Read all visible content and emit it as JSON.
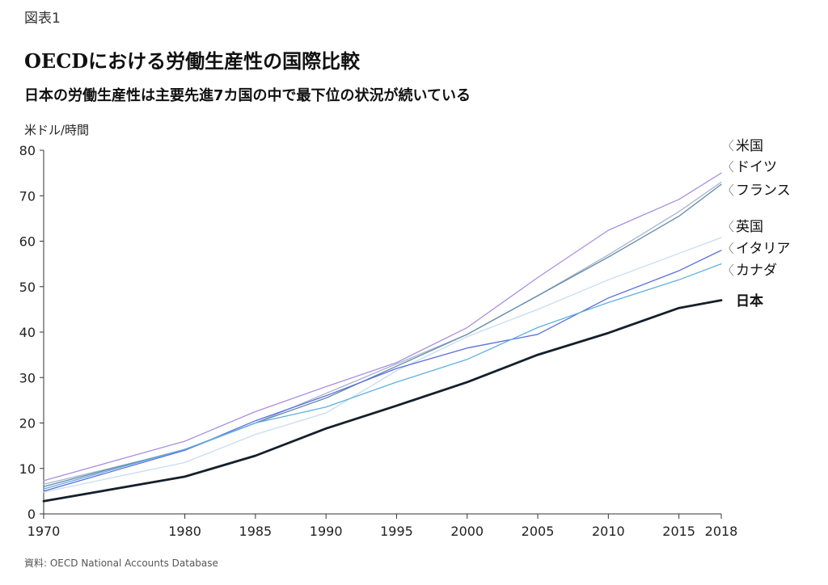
{
  "figure_label": "図表1",
  "title": "OECDにおける労働生産性の国際比較",
  "subtitle": "日本の労働生産性は主要先進7カ国の中で最下位の状況が続いている",
  "source": "資料: OECD National Accounts Database",
  "chart_data": {
    "type": "line",
    "ylabel": "米ドル/時間",
    "xlabel": "",
    "ylim": [
      0,
      80
    ],
    "y_ticks": [
      0,
      10,
      20,
      30,
      40,
      50,
      60,
      70,
      80
    ],
    "x": [
      1970,
      1980,
      1985,
      1990,
      1995,
      2000,
      2005,
      2010,
      2015,
      2018
    ],
    "x_tick_labels": [
      "1970",
      "1980",
      "1985",
      "1990",
      "1995",
      "2000",
      "2005",
      "2010",
      "2015",
      "2018"
    ],
    "grid": false,
    "legend_placement": "right (labels at line ends)",
    "series": [
      {
        "name": "米国",
        "color": "#a98fe0",
        "width": 1.3,
        "bold": false,
        "values": [
          7.3,
          16.0,
          22.5,
          28.0,
          33.3,
          41.0,
          52.0,
          62.4,
          69.2,
          75.0
        ]
      },
      {
        "name": "ドイツ",
        "color": "#a9b3cc",
        "width": 1.3,
        "bold": false,
        "values": [
          6.5,
          14.0,
          20.0,
          26.5,
          33.0,
          39.5,
          48.0,
          57.0,
          66.5,
          73.0
        ]
      },
      {
        "name": "フランス",
        "color": "#5f8aa8",
        "width": 1.3,
        "bold": false,
        "values": [
          6.0,
          14.2,
          20.0,
          25.5,
          32.5,
          39.5,
          48.0,
          56.5,
          65.5,
          72.5
        ]
      },
      {
        "name": "英国",
        "color": "#c7dcf0",
        "width": 1.3,
        "bold": false,
        "values": [
          4.8,
          11.3,
          17.5,
          22.2,
          31.5,
          39.0,
          45.0,
          51.5,
          57.3,
          60.8
        ]
      },
      {
        "name": "イタリア",
        "color": "#5a6ee0",
        "width": 1.3,
        "bold": false,
        "values": [
          5.0,
          14.0,
          20.5,
          26.0,
          32.0,
          36.5,
          39.5,
          47.5,
          53.5,
          58.0
        ]
      },
      {
        "name": "カナダ",
        "color": "#5fb0df",
        "width": 1.3,
        "bold": false,
        "values": [
          5.5,
          14.2,
          20.0,
          23.5,
          29.0,
          34.0,
          41.0,
          46.5,
          51.5,
          55.0
        ]
      },
      {
        "name": "日本",
        "color": "#14202b",
        "width": 2.8,
        "bold": true,
        "values": [
          2.8,
          8.2,
          12.8,
          18.8,
          23.8,
          29.0,
          35.0,
          39.8,
          45.3,
          47.0
        ]
      }
    ]
  }
}
